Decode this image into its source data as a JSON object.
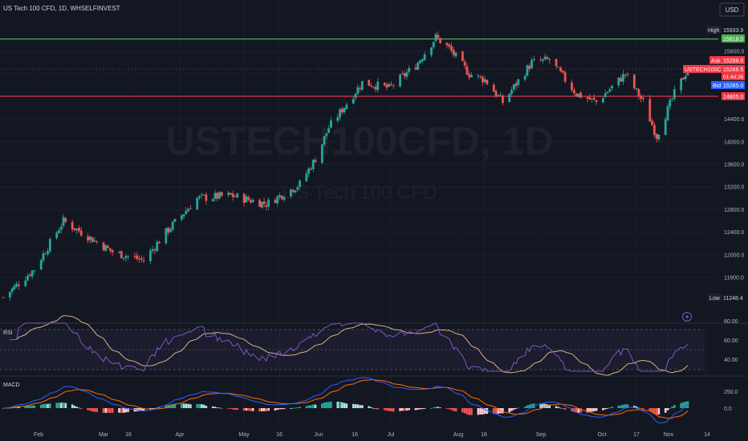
{
  "header": {
    "symbol_line": "US Tech 100 CFD, 1D, WHSELFINVEST",
    "currency_button": "USD"
  },
  "watermark": {
    "main": "USTECH100CFD, 1D",
    "sub": "US Tech 100 CFD"
  },
  "price_labels": {
    "high_label": "High",
    "high_value": "15933.9",
    "green_line_value": "15818.0",
    "ask_label": "Ask",
    "ask_value": "15288.0",
    "symbol_tag": "USTECH100CFD",
    "last_value": "15286.5",
    "countdown": "01:44:26",
    "bid_label": "Bid",
    "bid_value": "15285.0",
    "red_line_value": "14805.0",
    "low_label": "Low",
    "low_value": "11248.4"
  },
  "indicators": {
    "rsi_label": "RSI",
    "rsi_ticks": [
      "80.00",
      "60.00",
      "40.00"
    ],
    "macd_label": "MACD",
    "macd_ticks": [
      "250.0",
      "0.0"
    ]
  },
  "colors": {
    "background": "#131722",
    "up": "#26a69a",
    "down": "#ef5350",
    "green_line": "#4caf50",
    "red_line": "#f23645",
    "rsi_line": "#7e57c2",
    "rsi_ma": "#d4b483",
    "macd_line": "#2962ff",
    "signal_line": "#ff6d00"
  },
  "chart_data": {
    "type": "candlestick",
    "title": "US Tech 100 CFD, 1D, WHSELFINVEST",
    "y_ticks": [
      15600,
      15200,
      14800,
      14400,
      14000,
      13600,
      13200,
      12800,
      12400,
      12000,
      11600
    ],
    "x_ticks": [
      "Feb",
      "Mar",
      "16",
      "Apr",
      "May",
      "16",
      "Jun",
      "16",
      "Jul",
      "Aug",
      "16",
      "Sep",
      "Oct",
      "17",
      "Nov",
      "14"
    ],
    "horizontal_lines": [
      15818.0,
      14805.0
    ],
    "high": 15933.9,
    "low": 11248.4,
    "close_trend": [
      [
        "Jan 06",
        11248
      ],
      [
        "Jan 20",
        11750
      ],
      [
        "Feb 02",
        12600
      ],
      [
        "Feb 10",
        12400
      ],
      [
        "Feb 24",
        12050
      ],
      [
        "Mar 10",
        11900
      ],
      [
        "Mar 20",
        12400
      ],
      [
        "Apr 03",
        13000
      ],
      [
        "Apr 18",
        13050
      ],
      [
        "May 04",
        12900
      ],
      [
        "May 19",
        13250
      ],
      [
        "May 26",
        13700
      ],
      [
        "Jun 01",
        14250
      ],
      [
        "Jun 16",
        15050
      ],
      [
        "Jun 28",
        14950
      ],
      [
        "Jul 10",
        15350
      ],
      [
        "Jul 19",
        15850
      ],
      [
        "Jul 25",
        15650
      ],
      [
        "Aug 03",
        15200
      ],
      [
        "Aug 10",
        15100
      ],
      [
        "Aug 18",
        14700
      ],
      [
        "Aug 31",
        15400
      ],
      [
        "Sep 08",
        15450
      ],
      [
        "Sep 20",
        14850
      ],
      [
        "Sep 29",
        14700
      ],
      [
        "Oct 12",
        15200
      ],
      [
        "Oct 20",
        14700
      ],
      [
        "Oct 26",
        14100
      ],
      [
        "Nov 03",
        14850
      ],
      [
        "Nov 09",
        15286.5
      ]
    ],
    "rsi_range": [
      20,
      90
    ],
    "macd_range": [
      -250,
      400
    ]
  }
}
